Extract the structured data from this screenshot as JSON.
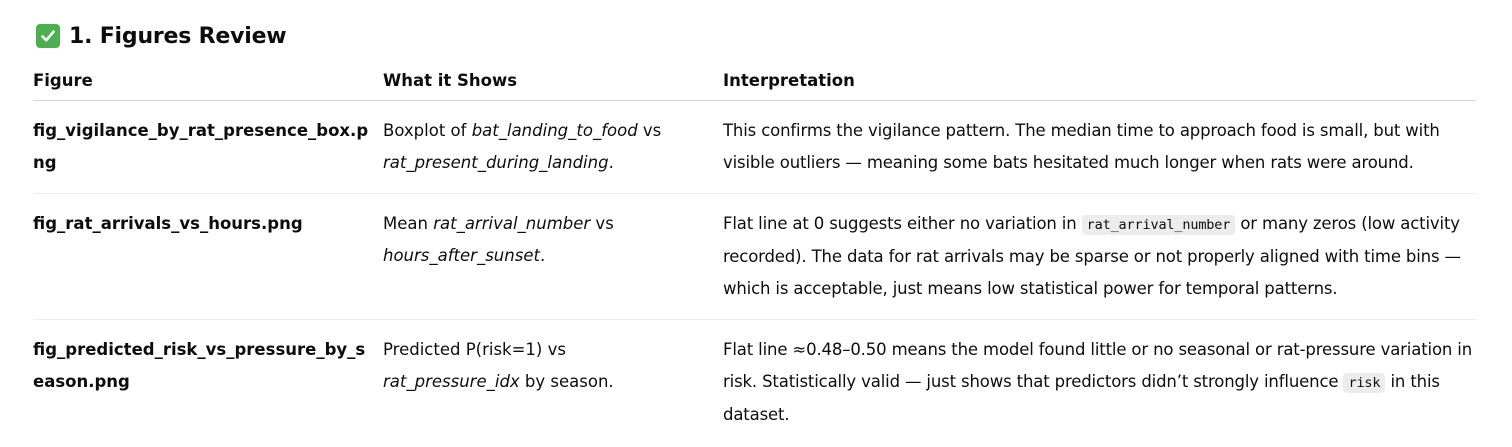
{
  "section": {
    "icon": "check-mark-button-icon",
    "title": "1. Figures Review",
    "accent_color": "#4caf50"
  },
  "table": {
    "headers": [
      "Figure",
      "What it Shows",
      "Interpretation"
    ],
    "rows": [
      {
        "figure": "fig_vigilance_by_rat_presence_box.png",
        "shows": {
          "prefix": "Boxplot of ",
          "var1": "bat_landing_to_food",
          "mid": " vs ",
          "var2": "rat_present_during_landing",
          "suffix": "."
        },
        "interpretation": {
          "text": "This confirms the vigilance pattern. The median time to approach food is small, but with visible outliers — meaning some bats hesitated much longer when rats were around."
        }
      },
      {
        "figure": "fig_rat_arrivals_vs_hours.png",
        "shows": {
          "prefix": "Mean ",
          "var1": "rat_arrival_number",
          "mid": " vs ",
          "var2": "hours_after_sunset",
          "suffix": "."
        },
        "interpretation": {
          "before": "Flat line at 0 suggests either no variation in ",
          "code": "rat_arrival_number",
          "after": " or many zeros (low activity recorded). The data for rat arrivals may be sparse or not properly aligned with time bins — which is acceptable, just means low statistical power for temporal patterns."
        }
      },
      {
        "figure": "fig_predicted_risk_vs_pressure_by_season.png",
        "shows": {
          "prefix": "Predicted P(risk=1) vs ",
          "var1": "rat_pressure_idx",
          "suffix": " by season."
        },
        "interpretation": {
          "before": "Flat line ≈0.48–0.50 means the model found little or no seasonal or rat-pressure variation in risk. Statistically valid — just shows that predictors didn’t strongly influence ",
          "code": "risk",
          "after": " in this dataset."
        }
      }
    ]
  }
}
